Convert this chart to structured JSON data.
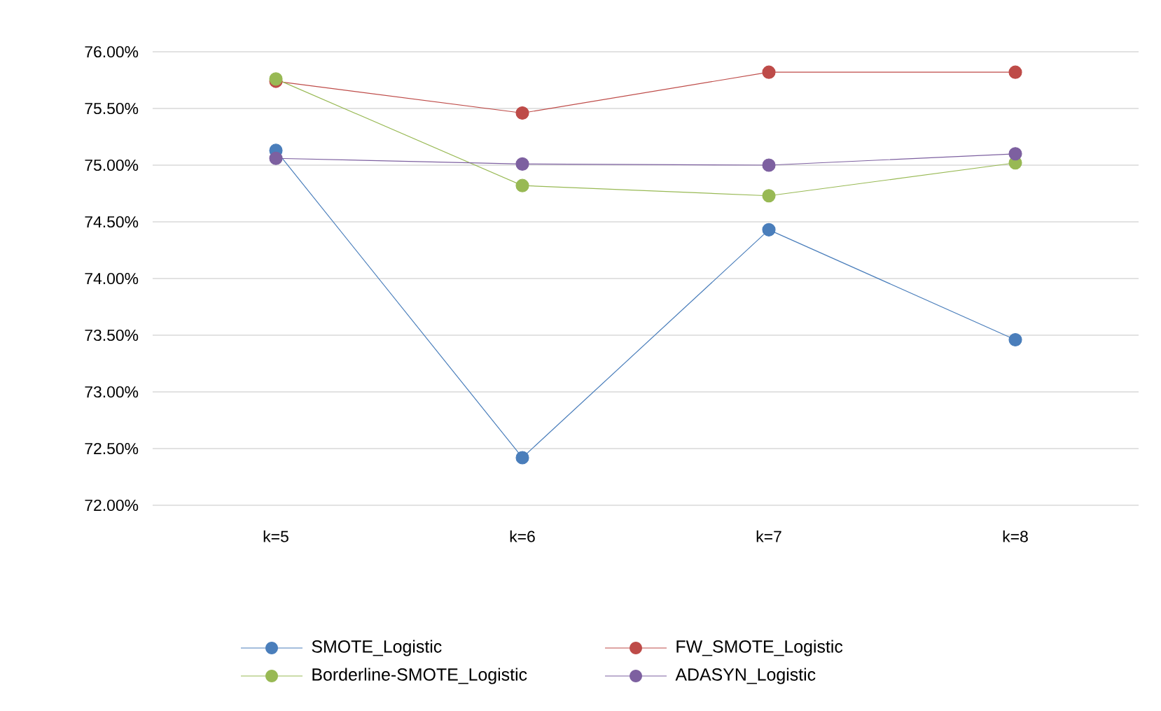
{
  "chart_data": {
    "type": "line",
    "categories": [
      "k=5",
      "k=6",
      "k=7",
      "k=8"
    ],
    "series": [
      {
        "name": "SMOTE_Logistic",
        "color": "#4a7ebb",
        "values": [
          75.13,
          72.42,
          74.43,
          73.46
        ]
      },
      {
        "name": "FW_SMOTE_Logistic",
        "color": "#be4b48",
        "values": [
          75.74,
          75.46,
          75.82,
          75.82
        ]
      },
      {
        "name": "Borderline-SMOTE_Logistic",
        "color": "#98b954",
        "values": [
          75.76,
          74.82,
          74.73,
          75.02
        ]
      },
      {
        "name": "ADASYN_Logistic",
        "color": "#7d60a0",
        "values": [
          75.06,
          75.01,
          75.0,
          75.1
        ]
      }
    ],
    "ylim": [
      72,
      76
    ],
    "yticks": [
      {
        "value": 72,
        "label": "72.00%"
      },
      {
        "value": 72.5,
        "label": "72.50%"
      },
      {
        "value": 73,
        "label": "73.00%"
      },
      {
        "value": 73.5,
        "label": "73.50%"
      },
      {
        "value": 74,
        "label": "74.00%"
      },
      {
        "value": 74.5,
        "label": "74.50%"
      },
      {
        "value": 75,
        "label": "75.00%"
      },
      {
        "value": 75.5,
        "label": "75.50%"
      },
      {
        "value": 76,
        "label": "76.00%"
      }
    ],
    "grid": "y",
    "legend": "bottom",
    "marker": "circle",
    "line_style": "solid"
  }
}
